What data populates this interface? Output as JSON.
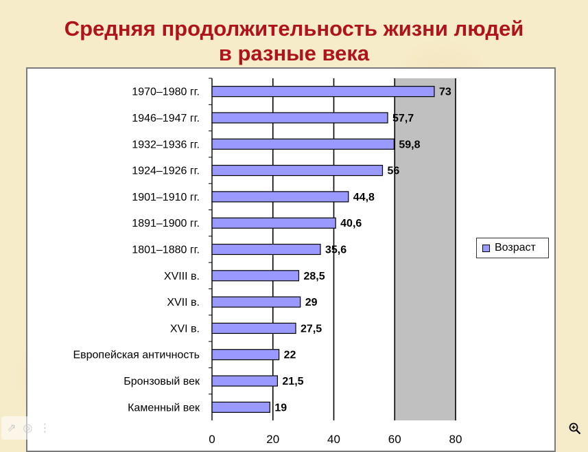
{
  "title_line1": "Средняя продолжительность жизни людей",
  "title_line2": "в разные века",
  "chart_data": {
    "type": "bar",
    "orientation": "horizontal",
    "title": "Средняя продолжительность жизни людей в разные века",
    "categories": [
      "1970–1980 гг.",
      "1946–1947 гг.",
      "1932–1936 гг.",
      "1924–1926 гг.",
      "1901–1910 гг.",
      "1891–1900 гг.",
      "1801–1880 гг.",
      "XVIII в.",
      "XVII в.",
      "XVI в.",
      "Европейская античность",
      "Бронзовый век",
      "Каменный век"
    ],
    "series": [
      {
        "name": "Возраст",
        "values": [
          73,
          57.7,
          59.8,
          56,
          44.8,
          40.6,
          35.6,
          28.5,
          29,
          27.5,
          22,
          21.5,
          19
        ],
        "labels": [
          "73",
          "57,7",
          "59,8",
          "56",
          "44,8",
          "40,6",
          "35,6",
          "28,5",
          "29",
          "27,5",
          "22",
          "21,5",
          "19"
        ]
      }
    ],
    "xlim": [
      0,
      80
    ],
    "xticks": [
      0,
      20,
      40,
      60,
      80
    ],
    "grid": true,
    "plot_background": "#c0c0c0",
    "bar_color": "#9999ff",
    "legend_position": "right"
  },
  "overlay": {
    "icons": [
      "share-icon",
      "lens-icon",
      "more-icon"
    ]
  },
  "zoom_icon": "zoom-in-icon"
}
